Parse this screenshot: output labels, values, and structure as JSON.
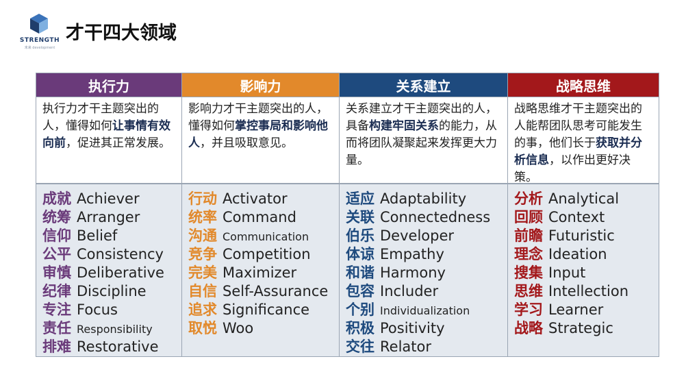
{
  "logo": {
    "text": "STRENGTH",
    "sub": "未来 development",
    "color": "#1f3d6b"
  },
  "title": "才干四大领域",
  "columns": [
    {
      "header": "执行力",
      "color": "#6a3a7a",
      "desc": [
        {
          "t": "执行力才干主题突出的人，懂得如何"
        },
        {
          "t": "让事情有效向前",
          "b": true
        },
        {
          "t": "，促进其正常发展。"
        }
      ],
      "items": [
        {
          "cn": "成就",
          "en": "Achiever"
        },
        {
          "cn": "统筹",
          "en": "Arranger"
        },
        {
          "cn": "信仰",
          "en": "Belief"
        },
        {
          "cn": "公平",
          "en": "Consistency"
        },
        {
          "cn": "审慎",
          "en": "Deliberative"
        },
        {
          "cn": "纪律",
          "en": "Discipline"
        },
        {
          "cn": "专注",
          "en": "Focus"
        },
        {
          "cn": "责任",
          "en": "Responsibility",
          "small": true
        },
        {
          "cn": "排难",
          "en": "Restorative"
        }
      ]
    },
    {
      "header": "影响力",
      "color": "#e2892b",
      "desc": [
        {
          "t": "影响力才干主题突出的人，懂得如何"
        },
        {
          "t": "掌控事局和影响他人",
          "b": true
        },
        {
          "t": "，并且吸取意见。"
        }
      ],
      "items": [
        {
          "cn": "行动",
          "en": "Activator"
        },
        {
          "cn": "统率",
          "en": "Command"
        },
        {
          "cn": "沟通",
          "en": "Communication",
          "small": true
        },
        {
          "cn": "竞争",
          "en": "Competition"
        },
        {
          "cn": "完美",
          "en": "Maximizer"
        },
        {
          "cn": "自信",
          "en": "Self-Assurance"
        },
        {
          "cn": "追求",
          "en": "Significance"
        },
        {
          "cn": "取悦",
          "en": "Woo"
        }
      ]
    },
    {
      "header": "关系建立",
      "color": "#1e4a7e",
      "desc": [
        {
          "t": "关系建立才干主题突出的人，具备"
        },
        {
          "t": "构建牢固关系",
          "b": true
        },
        {
          "t": "的能力，从而将团队凝聚起来发挥更大力量。"
        }
      ],
      "items": [
        {
          "cn": "适应",
          "en": "Adaptability"
        },
        {
          "cn": "关联",
          "en": "Connectedness"
        },
        {
          "cn": "伯乐",
          "en": "Developer"
        },
        {
          "cn": "体谅",
          "en": "Empathy"
        },
        {
          "cn": "和谐",
          "en": "Harmony"
        },
        {
          "cn": "包容",
          "en": "Includer"
        },
        {
          "cn": "个别",
          "en": "Individualization",
          "small": true
        },
        {
          "cn": "积极",
          "en": "Positivity"
        },
        {
          "cn": "交往",
          "en": "Relator"
        }
      ]
    },
    {
      "header": "战略思维",
      "color": "#a3181b",
      "desc": [
        {
          "t": "战略思维才干主题突出的人能帮团队思考可能发生的事，他们长于"
        },
        {
          "t": "获取并分析信息",
          "b": true
        },
        {
          "t": "，以作出更好决策。"
        }
      ],
      "items": [
        {
          "cn": "分析",
          "en": "Analytical"
        },
        {
          "cn": "回顾",
          "en": "Context"
        },
        {
          "cn": "前瞻",
          "en": "Futuristic"
        },
        {
          "cn": "理念",
          "en": "Ideation"
        },
        {
          "cn": "搜集",
          "en": "Input"
        },
        {
          "cn": "思维",
          "en": "Intellection"
        },
        {
          "cn": "学习",
          "en": "Learner"
        },
        {
          "cn": "战略",
          "en": "Strategic"
        }
      ]
    }
  ]
}
